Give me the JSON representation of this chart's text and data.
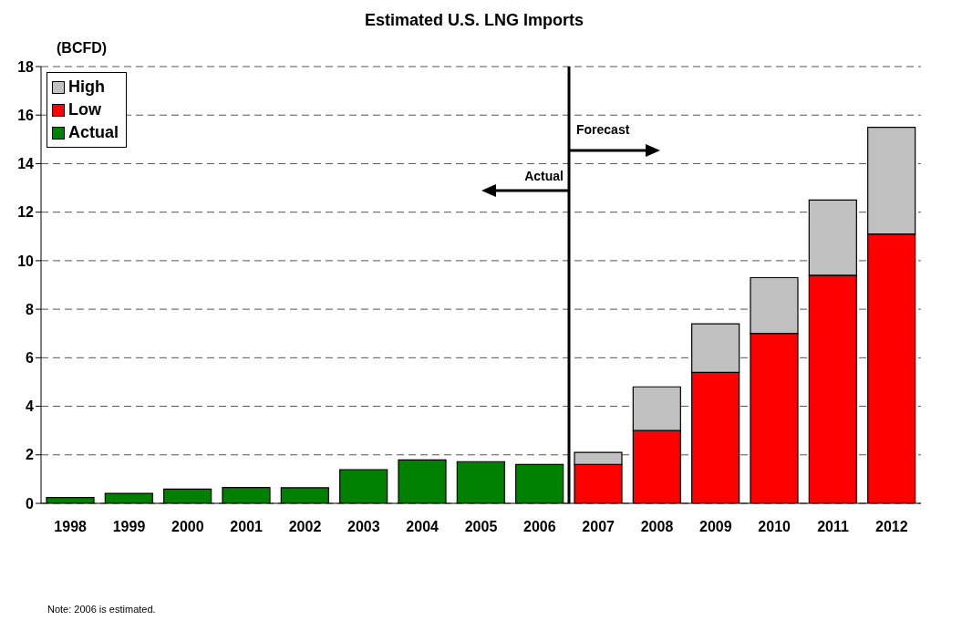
{
  "chart_data": {
    "type": "bar",
    "title": "Estimated U.S. LNG Imports",
    "ylabel": "(BCFD)",
    "x": [
      1998,
      1999,
      2000,
      2001,
      2002,
      2003,
      2004,
      2005,
      2006,
      2007,
      2008,
      2009,
      2010,
      2011,
      2012
    ],
    "xlim": [
      1997.5,
      2012.5
    ],
    "xticks": [
      1998,
      1999,
      2000,
      2001,
      2002,
      2003,
      2004,
      2005,
      2006,
      2007,
      2008,
      2009,
      2010,
      2011,
      2012
    ],
    "ylim": [
      0,
      18
    ],
    "yticks": [
      0,
      2,
      4,
      6,
      8,
      10,
      12,
      14,
      16,
      18
    ],
    "stacked": true,
    "series": [
      {
        "name": "Actual",
        "color": "#008000",
        "values": [
          0.24,
          0.41,
          0.59,
          0.65,
          0.64,
          1.39,
          1.79,
          1.72,
          1.6,
          null,
          null,
          null,
          null,
          null,
          null
        ]
      },
      {
        "name": "Low",
        "color": "#ff0000",
        "values": [
          null,
          null,
          null,
          null,
          null,
          null,
          null,
          null,
          null,
          1.6,
          3.0,
          5.4,
          7.0,
          9.4,
          11.1
        ]
      },
      {
        "name": "High",
        "color": "#c0c0c0",
        "values": [
          null,
          null,
          null,
          null,
          null,
          null,
          null,
          null,
          null,
          0.5,
          1.8,
          2.0,
          2.3,
          3.1,
          4.4
        ]
      }
    ],
    "ref_lines": [
      {
        "axis": "x",
        "value": 2006.5,
        "color": "#000000"
      }
    ],
    "annotations": [
      "Forecast",
      "Actual",
      "Note:  2006 is estimated."
    ],
    "grid": "y",
    "legend": "top left"
  }
}
